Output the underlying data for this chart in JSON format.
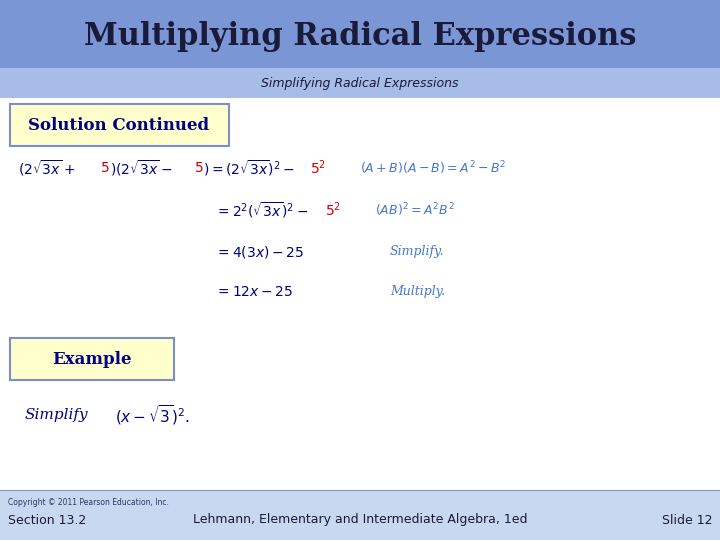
{
  "title": "Multiplying Radical Expressions",
  "subtitle": "Simplifying Radical Expressions",
  "title_bg": "#7b96d4",
  "subtitle_bg": "#a8bce8",
  "main_bg": "#c8d8f0",
  "content_bg": "#ffffff",
  "box_label1": "Solution Continued",
  "box_label2": "Example",
  "box_fill": "#ffffcc",
  "box_edge": "#7b8fcc",
  "footer_left": "Copyright © 2011 Pearson Education, Inc.",
  "footer_mid": "Lehmann, Elementary and Intermediate Algebra, 1ed",
  "footer_right": "Slide 12",
  "footer_section": "Section 13.2",
  "math_color": "#000080",
  "red_color": "#cc0000",
  "blue_comment": "#4477cc"
}
